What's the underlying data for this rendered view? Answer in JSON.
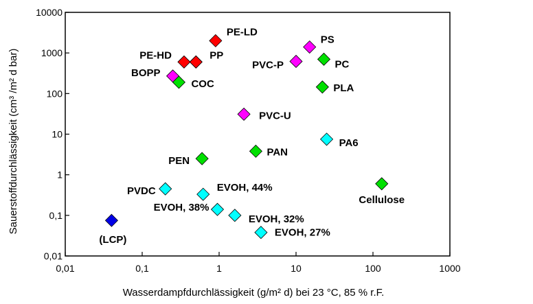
{
  "chart_data": {
    "type": "scatter",
    "title": "",
    "xlabel": "Wasserdampfdurchlässigkeit (g/m² d) bei 23 °C, 85 % r.F.",
    "ylabel": "Sauerstoffdurchlässigkeit (cm³ /m² d bar)",
    "xscale": "log",
    "yscale": "log",
    "xlim": [
      0.01,
      1000
    ],
    "ylim": [
      0.01,
      10000
    ],
    "x_ticks": [
      "0,01",
      "0,1",
      "1",
      "10",
      "100",
      "1000"
    ],
    "y_ticks": [
      "0,01",
      "0,1",
      "1",
      "10",
      "100",
      "1000",
      "10000"
    ],
    "grid": false,
    "legend": "none",
    "colors": {
      "red": "#ff0000",
      "magenta": "#ff00ff",
      "green": "#00e000",
      "cyan": "#00ffff",
      "blue": "#0000e6"
    },
    "points": [
      {
        "label": "PE-LD",
        "x": 0.9,
        "y": 2000,
        "color": "red"
      },
      {
        "label": "",
        "x": 0.5,
        "y": 600,
        "color": "red"
      },
      {
        "label": "PE-HD",
        "x": 0.35,
        "y": 600,
        "color": "red"
      },
      {
        "label": "PP",
        "x": 0.5,
        "y": 600,
        "color": "red"
      },
      {
        "label": "BOPP",
        "x": 0.25,
        "y": 270,
        "color": "magenta"
      },
      {
        "label": "COC",
        "x": 0.3,
        "y": 190,
        "color": "green"
      },
      {
        "label": "PS",
        "x": 15,
        "y": 1400,
        "color": "magenta"
      },
      {
        "label": "PVC-P",
        "x": 10,
        "y": 620,
        "color": "magenta"
      },
      {
        "label": "PC",
        "x": 23,
        "y": 700,
        "color": "green"
      },
      {
        "label": "PLA",
        "x": 22,
        "y": 145,
        "color": "green"
      },
      {
        "label": "PVC-U",
        "x": 2.1,
        "y": 31,
        "color": "magenta"
      },
      {
        "label": "PA6",
        "x": 25,
        "y": 7.5,
        "color": "cyan"
      },
      {
        "label": "PAN",
        "x": 3,
        "y": 3.8,
        "color": "green"
      },
      {
        "label": "PEN",
        "x": 0.6,
        "y": 2.5,
        "color": "green"
      },
      {
        "label": "Cellulose",
        "x": 130,
        "y": 0.6,
        "color": "green"
      },
      {
        "label": "PVDC",
        "x": 0.2,
        "y": 0.45,
        "color": "cyan"
      },
      {
        "label": "EVOH, 44%",
        "x": 0.62,
        "y": 0.33,
        "color": "cyan"
      },
      {
        "label": "EVOH, 38%",
        "x": 0.95,
        "y": 0.14,
        "color": "cyan"
      },
      {
        "label": "EVOH, 32%",
        "x": 1.6,
        "y": 0.1,
        "color": "cyan"
      },
      {
        "label": "EVOH, 27%",
        "x": 3.5,
        "y": 0.038,
        "color": "cyan"
      },
      {
        "label": "(LCP)",
        "x": 0.04,
        "y": 0.075,
        "color": "blue"
      }
    ]
  }
}
